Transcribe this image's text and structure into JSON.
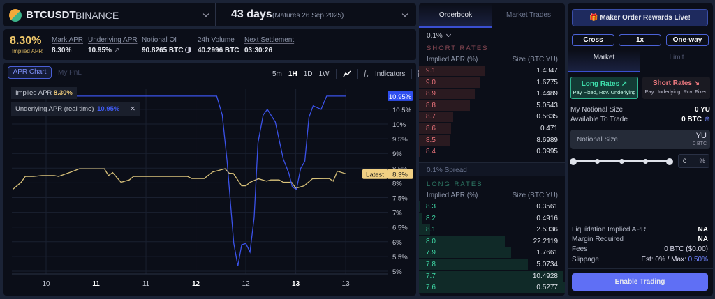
{
  "market": {
    "symbol": "BTCUSDT",
    "exchange": "BINANCE",
    "days": "43 days",
    "matures": "(Matures 26 Sep 2025)"
  },
  "stats": {
    "implied_value": "8.30%",
    "implied_label": "Implied APR",
    "items": [
      {
        "label": "Mark APR",
        "value": "8.30%"
      },
      {
        "label": "Underlying APR",
        "value": "10.95%"
      },
      {
        "label": "Notional OI",
        "value": "90.8265 BTC"
      },
      {
        "label": "24h Volume",
        "value": "40.2996 BTC"
      },
      {
        "label": "Next Settlement",
        "value": "03:30:26"
      }
    ]
  },
  "chart_tabs": [
    "APR Chart",
    "My PnL"
  ],
  "timeframes": [
    "5m",
    "1H",
    "1D",
    "1W"
  ],
  "active_timeframe": "1H",
  "indicators_label": "Indicators",
  "legend": {
    "implied_label": "Implied APR",
    "implied_value": "8.30%",
    "underlying_label": "Underlying APR (real time)",
    "underlying_value": "10.95%"
  },
  "chart_data": {
    "type": "line",
    "x_ticks": [
      {
        "label": "10",
        "t": "10 12:00",
        "bold": false
      },
      {
        "label": "11",
        "t": "11 00:00",
        "bold": true
      },
      {
        "label": "11",
        "t": "11 12:00",
        "bold": false
      },
      {
        "label": "12",
        "t": "12 00:00",
        "bold": true
      },
      {
        "label": "12",
        "t": "12 12:00",
        "bold": false
      },
      {
        "label": "13",
        "t": "13 00:00",
        "bold": true
      },
      {
        "label": "13",
        "t": "13 12:00",
        "bold": false
      }
    ],
    "y_ticks": [
      5,
      5.5,
      6,
      6.5,
      7,
      7.5,
      8,
      8.5,
      9,
      9.5,
      10,
      10.5
    ],
    "y_unit": "%",
    "ylim": [
      4.8,
      11.2
    ],
    "grid": true,
    "series": [
      {
        "name": "Implied APR",
        "color": "#d9c27a",
        "points": [
          [
            "10 04:00",
            7.78
          ],
          [
            "10 05:00",
            7.9
          ],
          [
            "10 06:00",
            8.02
          ],
          [
            "10 07:00",
            8.22
          ],
          [
            "10 09:00",
            8.22
          ],
          [
            "10 11:00",
            8.25
          ],
          [
            "10 14:00",
            8.25
          ],
          [
            "10 15:00",
            8.22
          ],
          [
            "10 18:00",
            8.37
          ],
          [
            "10 20:00",
            8.48
          ],
          [
            "11 02:00",
            8.48
          ],
          [
            "11 03:00",
            8.25
          ],
          [
            "11 04:00",
            8.35
          ],
          [
            "11 06:00",
            8.02
          ],
          [
            "11 08:00",
            8.1
          ],
          [
            "11 09:00",
            8.22
          ],
          [
            "11 12:00",
            8.22
          ],
          [
            "11 22:00",
            8.22
          ],
          [
            "11 23:00",
            8.15
          ],
          [
            "12 02:00",
            8.15
          ],
          [
            "12 04:00",
            8.37
          ],
          [
            "12 07:00",
            8.48
          ],
          [
            "12 08:00",
            8.33
          ],
          [
            "12 09:00",
            8.32
          ],
          [
            "12 11:00",
            7.9
          ],
          [
            "12 12:00",
            7.9
          ],
          [
            "12 13:00",
            8.02
          ],
          [
            "12 15:00",
            8.14
          ],
          [
            "12 17:00",
            8.06
          ],
          [
            "12 18:00",
            8.1
          ],
          [
            "12 20:00",
            8.1
          ],
          [
            "12 21:00",
            8.02
          ],
          [
            "12 23:00",
            8.02
          ],
          [
            "13 00:00",
            7.82
          ],
          [
            "13 02:00",
            7.9
          ],
          [
            "13 04:00",
            8.14
          ],
          [
            "13 08:00",
            8.15
          ],
          [
            "13 09:00",
            8.06
          ],
          [
            "13 10:00",
            8.4
          ],
          [
            "13 12:00",
            8.31
          ]
        ]
      },
      {
        "name": "Underlying APR (real time)",
        "color": "#3b52e8",
        "points": [
          [
            "10 04:00",
            10.95
          ],
          [
            "12 05:00",
            10.95
          ],
          [
            "12 06:20",
            10.31
          ],
          [
            "12 07:30",
            8.73
          ],
          [
            "12 09:05",
            5.96
          ],
          [
            "12 10:05",
            5.17
          ],
          [
            "12 11:00",
            5.9
          ],
          [
            "12 12:00",
            5.94
          ],
          [
            "12 13:00",
            5.65
          ],
          [
            "12 14:00",
            6.83
          ],
          [
            "12 14:55",
            9.36
          ],
          [
            "12 16:10",
            10.31
          ],
          [
            "12 17:10",
            10.5
          ],
          [
            "12 19:05",
            10.07
          ],
          [
            "12 21:00",
            8.81
          ],
          [
            "12 22:20",
            8.33
          ],
          [
            "12 23:10",
            7.86
          ],
          [
            "13 00:10",
            7.78
          ],
          [
            "13 01:10",
            8.49
          ],
          [
            "13 02:10",
            8.73
          ],
          [
            "13 03:10",
            10.23
          ],
          [
            "13 04:10",
            10.62
          ],
          [
            "13 06:05",
            10.5
          ],
          [
            "13 07:25",
            10.95
          ],
          [
            "13 12:00",
            10.95
          ]
        ]
      }
    ],
    "price_labels": [
      {
        "text": "10.95%",
        "value": 10.95,
        "color": "#2f4ff0"
      },
      {
        "prefix": "Latest",
        "text": "8.3%",
        "value": 8.3,
        "color": "#f1d083"
      }
    ]
  },
  "orderbook": {
    "tabs": [
      "Orderbook",
      "Market Trades"
    ],
    "precision": "0.1%",
    "short_title": "SHORT RATES",
    "long_title": "LONG RATES",
    "col_price": "Implied APR (%)",
    "col_size": "Size (BTC YU)",
    "spread": "0.1% Spread",
    "short": [
      [
        "9.1",
        "1.4347"
      ],
      [
        "9.0",
        "1.6775"
      ],
      [
        "8.9",
        "1.4489"
      ],
      [
        "8.8",
        "5.0543"
      ],
      [
        "8.7",
        "0.5635"
      ],
      [
        "8.6",
        "0.471"
      ],
      [
        "8.5",
        "8.6989"
      ],
      [
        "8.4",
        "0.3995"
      ]
    ],
    "long": [
      [
        "8.3",
        "0.3561"
      ],
      [
        "8.2",
        "0.4916"
      ],
      [
        "8.1",
        "2.5336"
      ],
      [
        "8.0",
        "22.2119"
      ],
      [
        "7.9",
        "1.7661"
      ],
      [
        "7.8",
        "5.0734"
      ],
      [
        "7.7",
        "10.4928"
      ],
      [
        "7.6",
        "0.5277"
      ]
    ]
  },
  "trade": {
    "rewards": "Maker Order Rewards Live!",
    "margin_mode": "Cross",
    "leverage": "1x",
    "position_mode": "One-way",
    "tabs": [
      "Market",
      "Limit"
    ],
    "long_title": "Long Rates",
    "long_sub": "Pay Fixed, Rcv. Underlying",
    "short_title": "Short Rates",
    "short_sub": "Pay Underlying, Rcv. Fixed",
    "my_notional_label": "My Notional Size",
    "my_notional_value": "0 YU",
    "available_label": "Available To Trade",
    "available_value": "0 BTC",
    "notional_placeholder": "Notional Size",
    "notional_unit": "YU",
    "notional_btc": "0 BTC",
    "slider_percent": "0",
    "percent_sign": "%",
    "summary": [
      {
        "label": "Liquidation Implied APR",
        "value": "NA"
      },
      {
        "label": "Margin Required",
        "value": "NA"
      },
      {
        "label": "Fees",
        "value": "0 BTC ($0.00)"
      },
      {
        "label": "Slippage",
        "value": "Est: 0% / Max: ",
        "highlight": "0.50%"
      }
    ],
    "enable": "Enable Trading"
  }
}
